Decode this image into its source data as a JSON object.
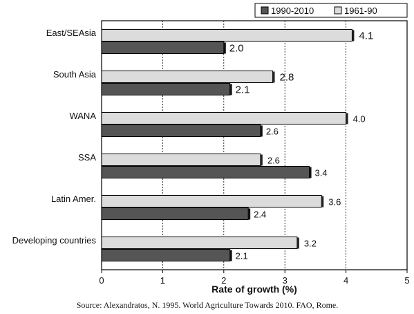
{
  "chart_data": {
    "type": "bar",
    "orientation": "horizontal",
    "categories": [
      "East/SEAsia",
      "South Asia",
      "WANA",
      "SSA",
      "Latin Amer.",
      "Developing countries"
    ],
    "series": [
      {
        "name": "1961-90",
        "values": [
          4.1,
          2.8,
          4.0,
          2.6,
          3.6,
          3.2
        ],
        "color": "#dcdcdc"
      },
      {
        "name": "1990-2010",
        "values": [
          2.0,
          2.1,
          2.6,
          3.4,
          2.4,
          2.1
        ],
        "color": "#555555"
      }
    ],
    "value_labels": {
      "1961-90": [
        "4.1",
        "2.8",
        "4.0",
        "2.6",
        "3.6",
        "3.2"
      ],
      "1990-2010": [
        "2.0",
        "2.1",
        "2.6",
        "3.4",
        "2.4",
        "2.1"
      ]
    },
    "legend_order": [
      "1990-2010",
      "1961-90"
    ],
    "legend_position": "top-right",
    "xlabel": "Rate of growth (%)",
    "xlim": [
      0,
      5
    ],
    "xticks": [
      "0",
      "1",
      "2",
      "3",
      "4",
      "5"
    ],
    "grid": "vertical",
    "source": "Source:  Alexandratos, N. 1995. World Agriculture Towards 2010. FAO, Rome."
  }
}
